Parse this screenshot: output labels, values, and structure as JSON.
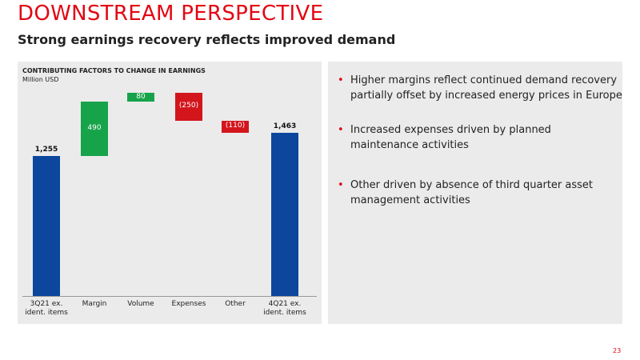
{
  "header": {
    "title": "DOWNSTREAM PERSPECTIVE",
    "subtitle": "Strong earnings recovery reflects improved demand"
  },
  "chart_data": {
    "type": "waterfall",
    "title": "CONTRIBUTING FACTORS TO CHANGE IN EARNINGS",
    "subtitle": "Million USD",
    "categories": [
      "3Q21 ex.\nident. items",
      "Margin",
      "Volume",
      "Expenses",
      "Other",
      "4Q21 ex.\nident. items"
    ],
    "values": [
      1255,
      490,
      80,
      -250,
      -110,
      1463
    ],
    "value_labels": [
      "1,255",
      "490",
      "80",
      "(250)",
      "(110)",
      "1,463"
    ],
    "colors": {
      "total": "#0c479d",
      "increase": "#17a34a",
      "decrease": "#d3151c"
    }
  },
  "bullets": [
    "Higher margins reflect continued demand recovery partially offset by increased energy prices in Europe",
    "Increased expenses driven by planned maintenance activities",
    "Other driven by absence of third quarter asset management activities"
  ],
  "page_number": "23"
}
